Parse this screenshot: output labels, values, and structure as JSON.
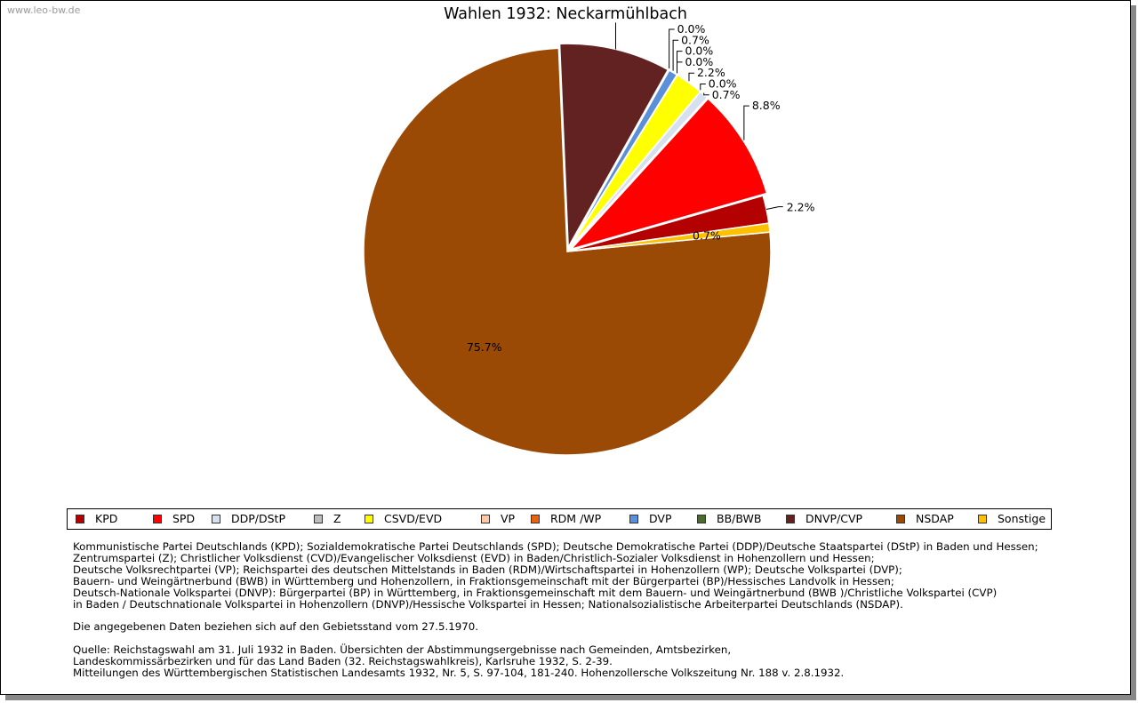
{
  "watermark": "www.leo-bw.de",
  "chart_data": {
    "type": "pie",
    "title": "Wahlen 1932: Neckarmühlbach",
    "slices": [
      {
        "name": "KPD",
        "value": 2.2,
        "label": "2.2%",
        "color": "#b30000",
        "exploded": false
      },
      {
        "name": "SPD",
        "value": 8.8,
        "label": "8.8%",
        "color": "#ff0000",
        "exploded": true
      },
      {
        "name": "DDP/DStP",
        "value": 0.7,
        "label": "0.7%",
        "color": "#d6e0ee",
        "exploded": true
      },
      {
        "name": "Z",
        "value": 0.0,
        "label": "0.0%",
        "color": "#bdbdbd",
        "exploded": true
      },
      {
        "name": "CSVD/EVD",
        "value": 2.2,
        "label": "2.2%",
        "color": "#ffff00",
        "exploded": true
      },
      {
        "name": "VP",
        "value": 0.0,
        "label": "0.0%",
        "color": "#ffc9a8",
        "exploded": true
      },
      {
        "name": "RDM /WP",
        "value": 0.0,
        "label": "0.0%",
        "color": "#e8620f",
        "exploded": true
      },
      {
        "name": "DVP",
        "value": 0.7,
        "label": "0.7%",
        "color": "#5b8fd9",
        "exploded": true
      },
      {
        "name": "BB/BWB",
        "value": 0.0,
        "label": "0.0%",
        "color": "#4a6b2a",
        "exploded": true
      },
      {
        "name": "DNVP/CVP",
        "value": 8.8,
        "label": "",
        "color": "#632222",
        "exploded": true
      },
      {
        "name": "NSDAP",
        "value": 75.7,
        "label": "75.7%",
        "color": "#9a4a04",
        "exploded": false
      },
      {
        "name": "Sonstige",
        "value": 0.7,
        "label": "0.7%",
        "color": "#ffc000",
        "exploded": false
      }
    ]
  },
  "notes": {
    "parties": [
      "Kommunistische Partei Deutschlands (KPD); Sozialdemokratische Partei Deutschlands (SPD); Deutsche Demokratische Partei (DDP)/Deutsche Staatspartei (DStP) in Baden und Hessen;",
      "Zentrumspartei (Z); Christlicher Volksdienst (CVD)/Evangelischer Volksdienst (EVD) in Baden/Christlich-Sozialer Volksdienst in Hohenzollern und Hessen;",
      "Deutsche Volksrechtpartei (VP); Reichspartei des deutschen Mittelstands in Baden (RDM)/Wirtschaftspartei in Hohenzollern (WP); Deutsche Volkspartei (DVP);",
      "Bauern- und Weingärtnerbund (BWB) in Württemberg und Hohenzollern, in Fraktionsgemeinschaft mit der Bürgerpartei (BP)/Hessisches Landvolk in Hessen;",
      "Deutsch-Nationale Volkspartei (DNVP): Bürgerpartei (BP) in Württemberg, in Fraktionsgemeinschaft mit dem Bauern- und Weingärtnerbund (BWB )/Christliche Volkspartei (CVP)",
      "in Baden / Deutschnationale Volkspartei in Hohenzollern (DNVP)/Hessische Volkspartei in Hessen; Nationalsozialistische Arbeiterpartei Deutschlands (NSDAP)."
    ],
    "gebietsstand": "Die angegebenen Daten beziehen sich auf den Gebietsstand vom 27.5.1970.",
    "quelle": [
      "Quelle: Reichstagswahl am 31. Juli 1932 in Baden. Übersichten der Abstimmungsergebnisse nach Gemeinden, Amtsbezirken,",
      "Landeskommissärbezirken und für das Land Baden (32. Reichstagswahlkreis), Karlsruhe 1932, S. 2-39.",
      "Mitteilungen des Württembergischen Statistischen Landesamts 1932, Nr. 5, S. 97-104, 181-240. Hohenzollersche Volkszeitung Nr. 188 v. 2.8.1932."
    ]
  }
}
